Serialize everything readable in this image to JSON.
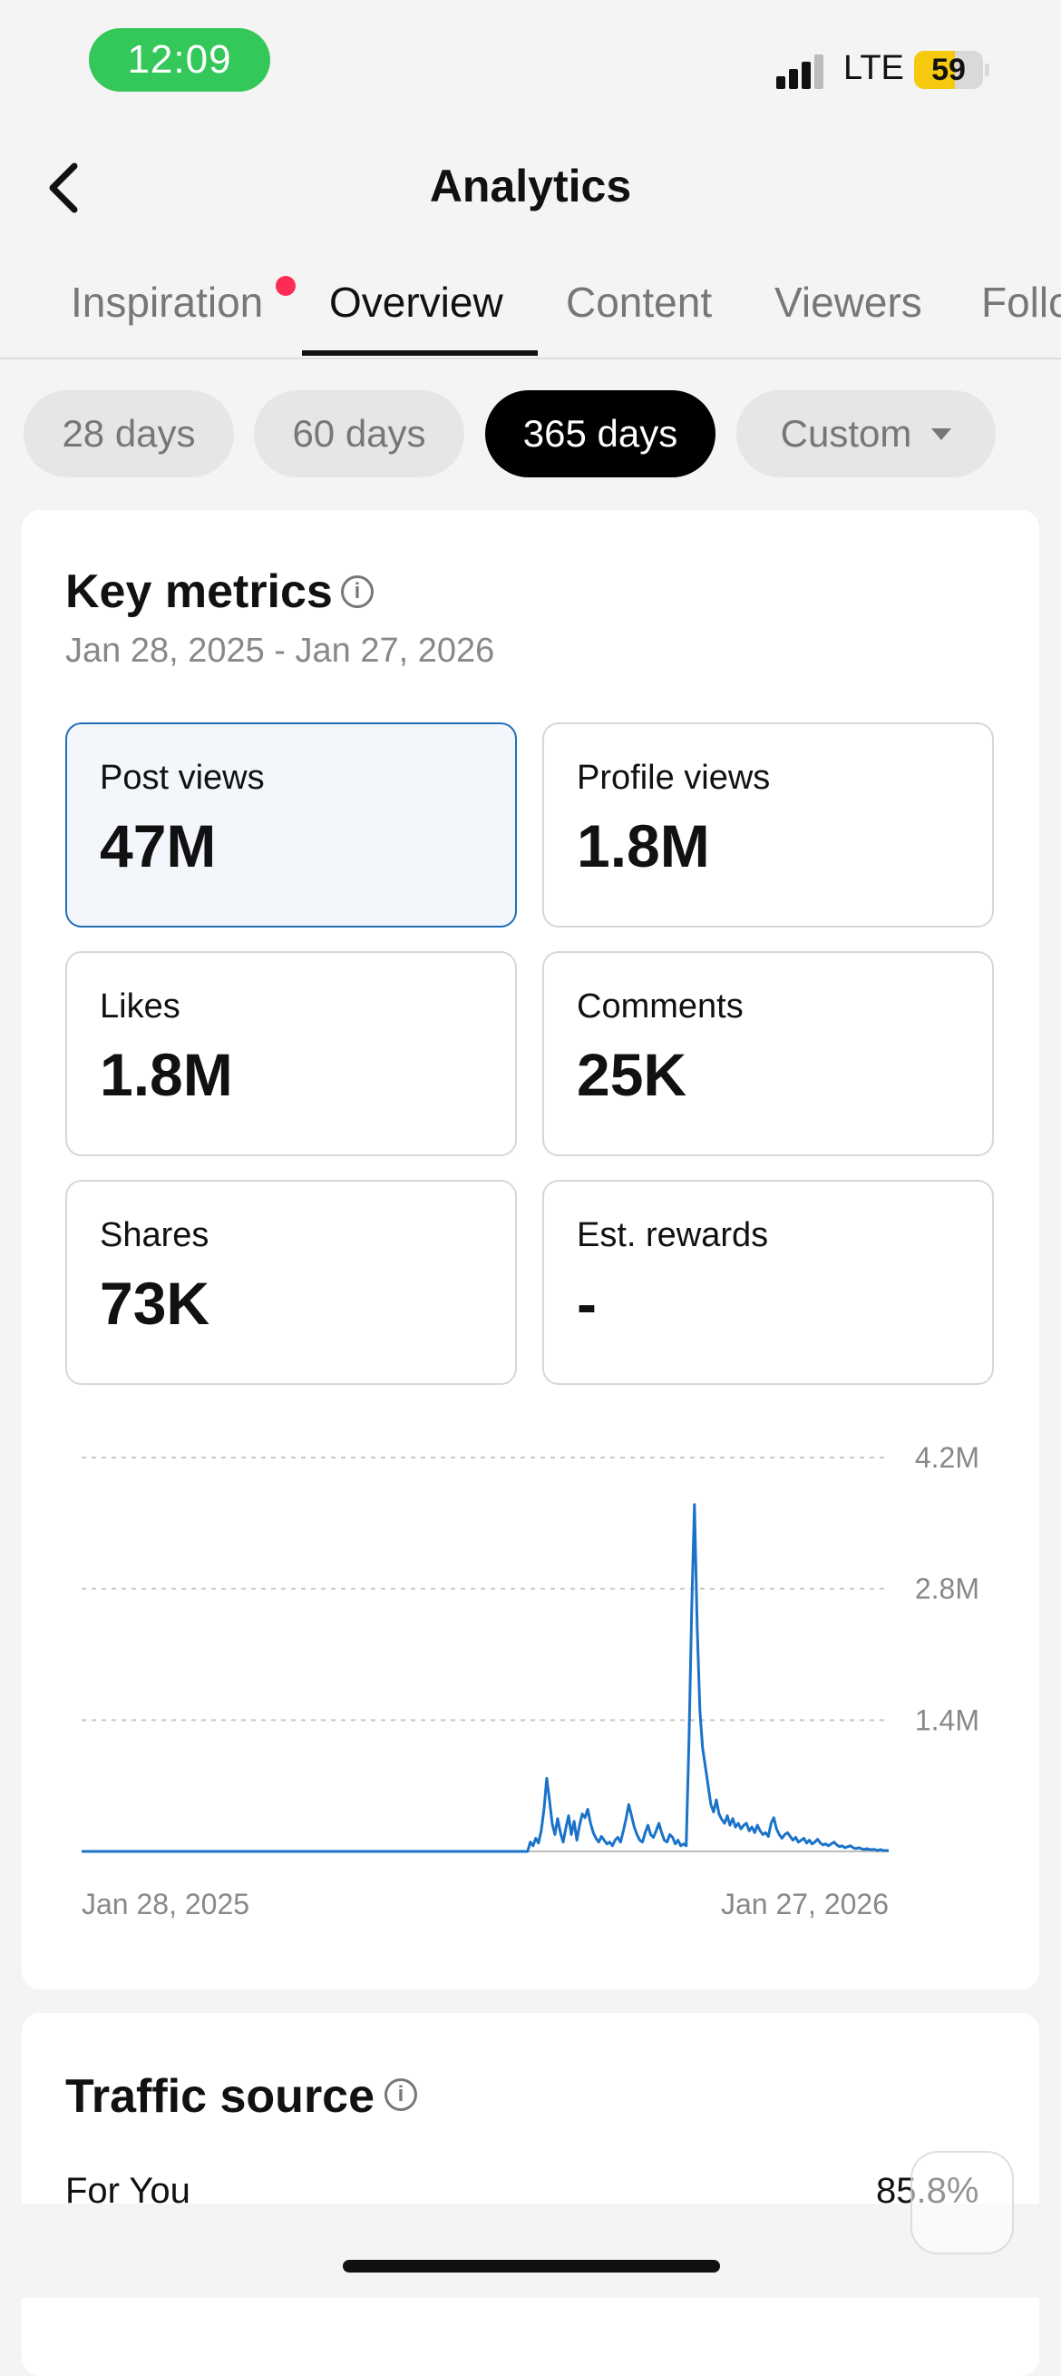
{
  "status_bar": {
    "time": "12:09",
    "network": "LTE",
    "battery": "59",
    "battery_level": 0.59
  },
  "header": {
    "title": "Analytics"
  },
  "tabs": [
    {
      "label": "Inspiration",
      "active": false,
      "has_notification_dot": true
    },
    {
      "label": "Overview",
      "active": true
    },
    {
      "label": "Content",
      "active": false
    },
    {
      "label": "Viewers",
      "active": false
    },
    {
      "label": "Follo",
      "active": false
    }
  ],
  "date_ranges": [
    {
      "label": "28 days",
      "active": false
    },
    {
      "label": "60 days",
      "active": false
    },
    {
      "label": "365 days",
      "active": true
    },
    {
      "label": "Custom",
      "active": false,
      "dropdown": true
    }
  ],
  "key_metrics": {
    "title": "Key metrics",
    "date_range": "Jan 28, 2025 - Jan 27, 2026",
    "metrics": [
      {
        "label": "Post views",
        "value": "47M",
        "selected": true
      },
      {
        "label": "Profile views",
        "value": "1.8M"
      },
      {
        "label": "Likes",
        "value": "1.8M"
      },
      {
        "label": "Comments",
        "value": "25K"
      },
      {
        "label": "Shares",
        "value": "73K"
      },
      {
        "label": "Est. rewards",
        "value": "-"
      }
    ]
  },
  "chart_data": {
    "type": "line",
    "series": [
      {
        "values": [
          0,
          0,
          0,
          0,
          0,
          0,
          0,
          0,
          0,
          0,
          0,
          0,
          0,
          0,
          0,
          0,
          0,
          0,
          0,
          0,
          0,
          0,
          0,
          0,
          0,
          0,
          0,
          0,
          0,
          0,
          0,
          0,
          0,
          0,
          0,
          0,
          0,
          0,
          0,
          0,
          0,
          0,
          0,
          0,
          0,
          0,
          0,
          0,
          0,
          0,
          0,
          0,
          0,
          0,
          0,
          0,
          0,
          0,
          0,
          0,
          0,
          0,
          0,
          0,
          0,
          0,
          0,
          0,
          0,
          0,
          0,
          0,
          0,
          0,
          0,
          0,
          0,
          0,
          0,
          0,
          0,
          0,
          0,
          0,
          0,
          0,
          0,
          0,
          0,
          0,
          0,
          0,
          0,
          0,
          0,
          0,
          0,
          0,
          0,
          0,
          0,
          0,
          0,
          0,
          0,
          0,
          0,
          0,
          0,
          0,
          0,
          0,
          0,
          0,
          0,
          0,
          0,
          0,
          0,
          0,
          0,
          0,
          0,
          0,
          0,
          0,
          0,
          0,
          0,
          0,
          0,
          0,
          0,
          0,
          0,
          0,
          0,
          0,
          0,
          0,
          0,
          0,
          0,
          0,
          0,
          0,
          0,
          0,
          0,
          0,
          0,
          0,
          0,
          0,
          0,
          0,
          0,
          0,
          0,
          0,
          0,
          0,
          0,
          0,
          0.1,
          0.06,
          0.14,
          0.09,
          0.22,
          0.45,
          0.78,
          0.55,
          0.3,
          0.18,
          0.35,
          0.2,
          0.1,
          0.25,
          0.38,
          0.18,
          0.32,
          0.12,
          0.28,
          0.4,
          0.36,
          0.45,
          0.3,
          0.2,
          0.14,
          0.1,
          0.16,
          0.12,
          0.08,
          0.1,
          0.06,
          0.12,
          0.15,
          0.1,
          0.22,
          0.35,
          0.5,
          0.38,
          0.26,
          0.18,
          0.12,
          0.1,
          0.2,
          0.28,
          0.18,
          0.15,
          0.22,
          0.3,
          0.2,
          0.12,
          0.1,
          0.18,
          0.15,
          0.08,
          0.12,
          0.06,
          0.08,
          0.06,
          1.2,
          2.6,
          3.7,
          2.4,
          1.5,
          1.1,
          0.9,
          0.7,
          0.5,
          0.42,
          0.55,
          0.4,
          0.34,
          0.3,
          0.38,
          0.28,
          0.35,
          0.26,
          0.3,
          0.24,
          0.28,
          0.3,
          0.22,
          0.26,
          0.2,
          0.28,
          0.22,
          0.18,
          0.2,
          0.16,
          0.3,
          0.36,
          0.24,
          0.18,
          0.14,
          0.18,
          0.2,
          0.16,
          0.12,
          0.15,
          0.1,
          0.12,
          0.14,
          0.09,
          0.12,
          0.08,
          0.1,
          0.13,
          0.09,
          0.07,
          0.08,
          0.06,
          0.08,
          0.1,
          0.07,
          0.05,
          0.06,
          0.04,
          0.05,
          0.06,
          0.04,
          0.03,
          0.04,
          0.03,
          0.02,
          0.03,
          0.02,
          0.02,
          0.02,
          0.01,
          0.02,
          0.01,
          0.01,
          0.01
        ]
      }
    ],
    "x_start_label": "Jan 28, 2025",
    "x_end_label": "Jan 27, 2026",
    "y_ticks": [
      "1.4M",
      "2.8M",
      "4.2M"
    ],
    "y_tick_values": [
      1.4,
      2.8,
      4.2
    ],
    "ylim": [
      0,
      4.2
    ],
    "y_unit": "M",
    "grid": true,
    "line_color": "#1a73c9"
  },
  "traffic_source": {
    "title": "Traffic source",
    "rows": [
      {
        "label": "For You",
        "value": "85.8%"
      }
    ]
  },
  "colors": {
    "accent": "#1f6fb8",
    "notification": "#fe2c55",
    "status_time_bg": "#34c759",
    "battery": "#f6c90e"
  }
}
